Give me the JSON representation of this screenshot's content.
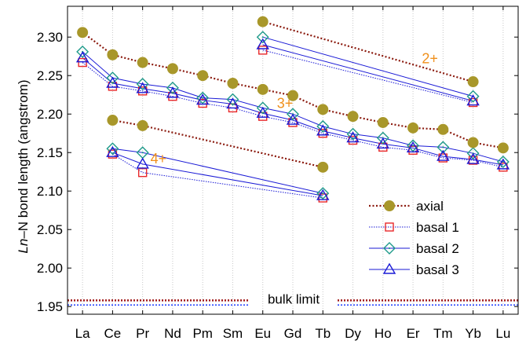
{
  "chart_data": {
    "type": "line",
    "categories": [
      "La",
      "Ce",
      "Pr",
      "Nd",
      "Pm",
      "Sm",
      "Eu",
      "Gd",
      "Tb",
      "Dy",
      "Ho",
      "Er",
      "Tm",
      "Yb",
      "Lu"
    ],
    "ylabel_italic": "Ln",
    "ylabel_rest": "–N bond length (angstrom)",
    "ylim": [
      1.94,
      2.34
    ],
    "yticks": [
      1.95,
      2.0,
      2.05,
      2.1,
      2.15,
      2.2,
      2.25,
      2.3
    ],
    "ytick_labels": [
      "1.95",
      "2.00",
      "2.05",
      "2.10",
      "2.15",
      "2.20",
      "2.25",
      "2.30"
    ],
    "grid": "vertical dotted",
    "legend_position": "lower-right",
    "colors": {
      "axial": "#a8972a",
      "axial_line": "#8b1a0e",
      "basal1": "#e8282a",
      "basal2": "#1e9a8a",
      "basal3": "#1a1ad6",
      "bulk_axial": "#a01818",
      "bulk_basal": "#1a3aff",
      "label": "#f0901c"
    },
    "series": [
      {
        "key": "axial",
        "name": "axial",
        "groups": [
          {
            "oxidation": "3+",
            "x": [
              "La",
              "Ce",
              "Pr",
              "Nd",
              "Pm",
              "Sm",
              "Eu",
              "Gd",
              "Tb",
              "Dy",
              "Ho",
              "Er",
              "Tm",
              "Yb",
              "Lu"
            ],
            "y": [
              2.306,
              2.277,
              2.267,
              2.259,
              2.25,
              2.24,
              2.232,
              2.224,
              2.206,
              2.197,
              2.189,
              2.182,
              2.18,
              2.163,
              2.156
            ]
          },
          {
            "oxidation": "2+",
            "x": [
              "Eu",
              "Yb"
            ],
            "y": [
              2.32,
              2.242
            ]
          },
          {
            "oxidation": "4+",
            "x": [
              "Ce",
              "Pr",
              "Tb"
            ],
            "y": [
              2.192,
              2.185,
              2.131
            ]
          }
        ]
      },
      {
        "key": "basal1",
        "name": "basal 1",
        "groups": [
          {
            "oxidation": "3+",
            "x": [
              "La",
              "Ce",
              "Pr",
              "Nd",
              "Pm",
              "Sm",
              "Eu",
              "Gd",
              "Tb",
              "Dy",
              "Ho",
              "Er",
              "Tm",
              "Yb",
              "Lu"
            ],
            "y": [
              2.267,
              2.236,
              2.23,
              2.223,
              2.214,
              2.208,
              2.197,
              2.189,
              2.175,
              2.166,
              2.157,
              2.153,
              2.143,
              2.14,
              2.131
            ]
          },
          {
            "oxidation": "2+",
            "x": [
              "Eu",
              "Yb"
            ],
            "y": [
              2.283,
              2.215
            ]
          },
          {
            "oxidation": "4+",
            "x": [
              "Ce",
              "Pr",
              "Tb"
            ],
            "y": [
              2.148,
              2.124,
              2.091
            ]
          }
        ]
      },
      {
        "key": "basal2",
        "name": "basal 2",
        "groups": [
          {
            "oxidation": "3+",
            "x": [
              "La",
              "Ce",
              "Pr",
              "Nd",
              "Pm",
              "Sm",
              "Eu",
              "Gd",
              "Tb",
              "Dy",
              "Ho",
              "Er",
              "Tm",
              "Yb",
              "Lu"
            ],
            "y": [
              2.281,
              2.247,
              2.239,
              2.234,
              2.221,
              2.219,
              2.208,
              2.2,
              2.184,
              2.174,
              2.169,
              2.159,
              2.157,
              2.149,
              2.138
            ]
          },
          {
            "oxidation": "2+",
            "x": [
              "Eu",
              "Yb"
            ],
            "y": [
              2.3,
              2.223
            ]
          },
          {
            "oxidation": "4+",
            "x": [
              "Ce",
              "Pr",
              "Tb"
            ],
            "y": [
              2.155,
              2.15,
              2.097
            ]
          }
        ]
      },
      {
        "key": "basal3",
        "name": "basal 3",
        "groups": [
          {
            "oxidation": "3+",
            "x": [
              "La",
              "Ce",
              "Pr",
              "Nd",
              "Pm",
              "Sm",
              "Eu",
              "Gd",
              "Tb",
              "Dy",
              "Ho",
              "Er",
              "Tm",
              "Yb",
              "Lu"
            ],
            "y": [
              2.273,
              2.24,
              2.233,
              2.227,
              2.218,
              2.213,
              2.201,
              2.192,
              2.178,
              2.169,
              2.161,
              2.156,
              2.145,
              2.141,
              2.134
            ]
          },
          {
            "oxidation": "2+",
            "x": [
              "Eu",
              "Yb"
            ],
            "y": [
              2.29,
              2.217
            ]
          },
          {
            "oxidation": "4+",
            "x": [
              "Ce",
              "Pr",
              "Tb"
            ],
            "y": [
              2.15,
              2.135,
              2.094
            ]
          }
        ]
      }
    ],
    "bulk_limit": {
      "label": "bulk limit",
      "axial": 1.958,
      "basal": 1.952
    },
    "annotations": [
      {
        "text": "2+",
        "x": "Yb",
        "y": 2.272
      },
      {
        "text": "3+",
        "x": "Gd",
        "y": 2.214
      },
      {
        "text": "4+",
        "x": "Nd",
        "y": 2.142
      }
    ]
  }
}
